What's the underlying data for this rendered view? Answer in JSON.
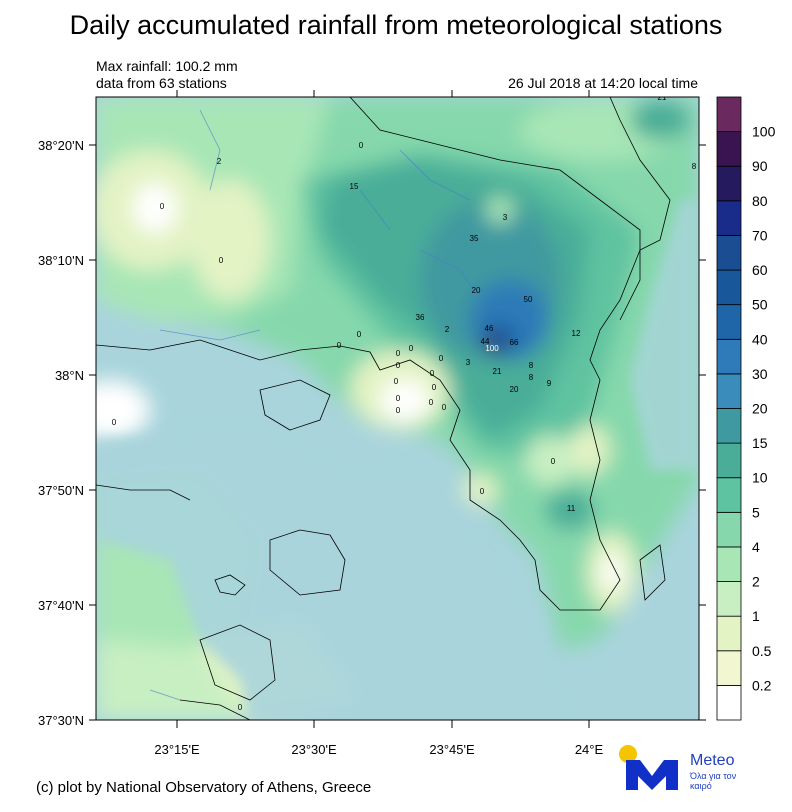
{
  "title": "Daily accumulated rainfall from meteorological stations",
  "info": {
    "max_rainfall": "Max rainfall: 100.2 mm",
    "stations": "data from 63 stations",
    "timestamp": "26 Jul 2018 at 14:20 local time"
  },
  "credit": "(c) plot by National Observatory of Athens, Greece",
  "logo": {
    "word": "Meteo",
    "tagline": "Όλα για τον καιρό",
    "icon": "meteo-logo-icon",
    "sun_color": "#f5c400",
    "mark_color": "#1030c8"
  },
  "axes": {
    "lat_ticks": [
      "38°20'N",
      "38°10'N",
      "38°N",
      "37°50'N",
      "37°40'N",
      "37°30'N"
    ],
    "lon_ticks": [
      "23°15'E",
      "23°30'E",
      "23°45'E",
      "24°E"
    ]
  },
  "legend": [
    {
      "label": "0.2",
      "color": "#ffffff"
    },
    {
      "label": "0.5",
      "color": "#f2f7d2"
    },
    {
      "label": "1",
      "color": "#e3f3c4"
    },
    {
      "label": "2",
      "color": "#c8efc2"
    },
    {
      "label": "4",
      "color": "#a8e6b6"
    },
    {
      "label": "5",
      "color": "#86d8ac"
    },
    {
      "label": "10",
      "color": "#5ec3a0"
    },
    {
      "label": "15",
      "color": "#49ad98"
    },
    {
      "label": "20",
      "color": "#3f99a0"
    },
    {
      "label": "30",
      "color": "#3a8cba"
    },
    {
      "label": "40",
      "color": "#2f7ab8"
    },
    {
      "label": "50",
      "color": "#1f66a8"
    },
    {
      "label": "60",
      "color": "#18589a"
    },
    {
      "label": "70",
      "color": "#1a4d92"
    },
    {
      "label": "80",
      "color": "#1a2c8a"
    },
    {
      "label": "90",
      "color": "#261a5e"
    },
    {
      "label": "100",
      "color": "#3a1450"
    },
    {
      "label": "",
      "color": "#6a2a60"
    }
  ],
  "sea_color": "#a9d4dc",
  "stations": [
    {
      "v": "21"
    },
    {
      "v": "8"
    },
    {
      "v": "2"
    },
    {
      "v": "0"
    },
    {
      "v": "15"
    },
    {
      "v": "0"
    },
    {
      "v": "0"
    },
    {
      "v": "3"
    },
    {
      "v": "35"
    },
    {
      "v": "20"
    },
    {
      "v": "50"
    },
    {
      "v": "36"
    },
    {
      "v": "2"
    },
    {
      "v": "46"
    },
    {
      "v": "44"
    },
    {
      "v": "100"
    },
    {
      "v": "66"
    },
    {
      "v": "12"
    },
    {
      "v": "0"
    },
    {
      "v": "0"
    },
    {
      "v": "0"
    },
    {
      "v": "0"
    },
    {
      "v": "3"
    },
    {
      "v": "21"
    },
    {
      "v": "8"
    },
    {
      "v": "8"
    },
    {
      "v": "9"
    },
    {
      "v": "20"
    },
    {
      "v": "0"
    },
    {
      "v": "0"
    },
    {
      "v": "0"
    },
    {
      "v": "0"
    },
    {
      "v": "0"
    },
    {
      "v": "0"
    },
    {
      "v": "0"
    },
    {
      "v": "0"
    },
    {
      "v": "0"
    },
    {
      "v": "0"
    },
    {
      "v": "11"
    },
    {
      "v": "0"
    },
    {
      "v": "0"
    },
    {
      "v": "0"
    }
  ]
}
